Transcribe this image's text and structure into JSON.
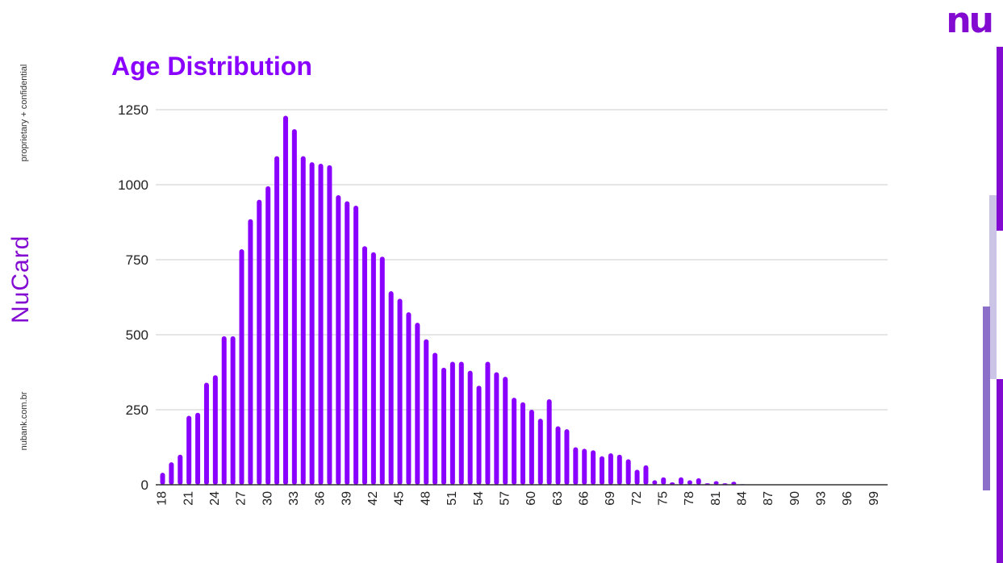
{
  "page": {
    "confidential_note": "proprietary + confidential",
    "brand_vertical": "NuCard",
    "website": "nubank.com.br",
    "logo_text": "nu"
  },
  "colors": {
    "brand": "#820ad1",
    "bar": "#8a00ff",
    "grid": "#cccccc",
    "axis": "#333333",
    "edge_light": "#cbc4e6",
    "edge_mid": "#8b6fc8"
  },
  "chart_data": {
    "type": "bar",
    "title": "Age Distribution",
    "xlabel": "",
    "ylabel": "",
    "ylim": [
      0,
      1250
    ],
    "yticks": [
      0,
      250,
      500,
      750,
      1000,
      1250
    ],
    "grid": true,
    "legend": "none",
    "x_tick_labels": [
      "18",
      "21",
      "24",
      "27",
      "30",
      "33",
      "36",
      "39",
      "42",
      "45",
      "48",
      "51",
      "54",
      "57",
      "60",
      "63",
      "66",
      "69",
      "72",
      "75",
      "78",
      "81",
      "84",
      "87",
      "90",
      "93",
      "96",
      "99"
    ],
    "categories": [
      18,
      19,
      20,
      21,
      22,
      23,
      24,
      25,
      26,
      27,
      28,
      29,
      30,
      31,
      32,
      33,
      34,
      35,
      36,
      37,
      38,
      39,
      40,
      41,
      42,
      43,
      44,
      45,
      46,
      47,
      48,
      49,
      50,
      51,
      52,
      53,
      54,
      55,
      56,
      57,
      58,
      59,
      60,
      61,
      62,
      63,
      64,
      65,
      66,
      67,
      68,
      69,
      70,
      71,
      72,
      73,
      74,
      75,
      76,
      77,
      78,
      79,
      80,
      81,
      82,
      83,
      84,
      85,
      86,
      87,
      88,
      89,
      90,
      91,
      92,
      93,
      94,
      95,
      96,
      97,
      98,
      99
    ],
    "values": [
      40,
      75,
      100,
      230,
      240,
      340,
      365,
      495,
      495,
      785,
      885,
      950,
      995,
      1095,
      1230,
      1185,
      1095,
      1075,
      1070,
      1065,
      965,
      945,
      930,
      795,
      775,
      760,
      645,
      620,
      575,
      540,
      485,
      440,
      390,
      410,
      410,
      380,
      330,
      410,
      375,
      360,
      290,
      275,
      250,
      220,
      285,
      195,
      185,
      125,
      120,
      115,
      95,
      105,
      100,
      85,
      50,
      65,
      15,
      25,
      8,
      25,
      15,
      22,
      5,
      12,
      5,
      10,
      2,
      1,
      1,
      1,
      0,
      0,
      0,
      0,
      0,
      0,
      0,
      0,
      0,
      0,
      0,
      0
    ]
  }
}
